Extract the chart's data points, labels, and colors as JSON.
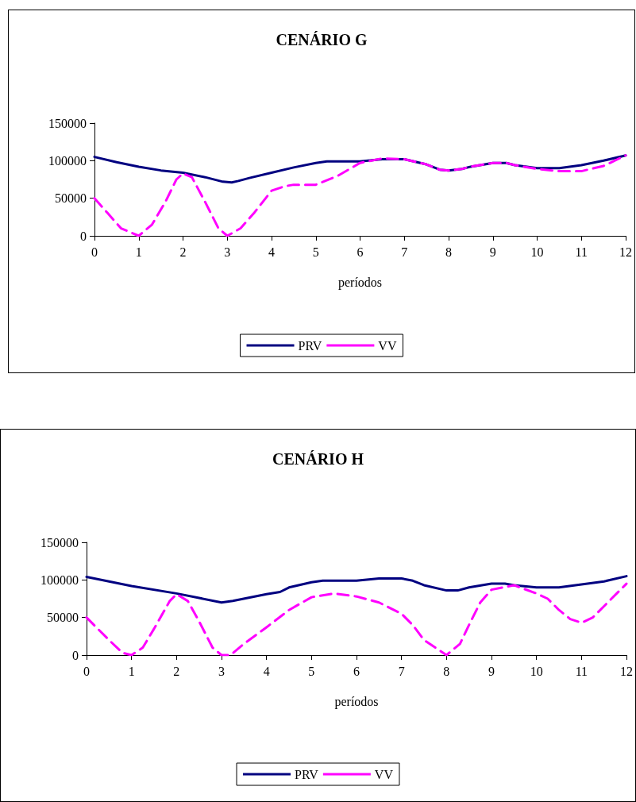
{
  "chart_data": [
    {
      "type": "line",
      "title": "CENÁRIO G",
      "xlabel": "períodos",
      "xlim": [
        0,
        12
      ],
      "xticks": [
        0,
        1,
        2,
        3,
        4,
        5,
        6,
        7,
        8,
        9,
        10,
        11,
        12
      ],
      "ylim": [
        0,
        150000
      ],
      "yticks": [
        0,
        50000,
        100000,
        150000
      ],
      "grid": false,
      "legend": "bottom",
      "marker": "none",
      "series": [
        {
          "name": "PRV",
          "color": "#000080",
          "line_style": "solid",
          "x": [
            0,
            0.5,
            1,
            1.5,
            2,
            2.5,
            2.9,
            3.1,
            3.25,
            3.5,
            4,
            4.5,
            5,
            5.25,
            6,
            6.5,
            7,
            7.5,
            7.8,
            8,
            8.3,
            8.5,
            9,
            9.3,
            9.5,
            10,
            10.5,
            11,
            11.5,
            12
          ],
          "values": [
            105000,
            98000,
            92000,
            87000,
            84000,
            78000,
            72000,
            71000,
            73000,
            77000,
            84000,
            91000,
            97000,
            99000,
            99000,
            102000,
            102000,
            95000,
            88000,
            87000,
            89000,
            92000,
            97000,
            97000,
            94000,
            90000,
            90000,
            94000,
            100000,
            107000
          ]
        },
        {
          "name": "VV",
          "color": "#ff00ff",
          "line_style": "dashed",
          "x": [
            0,
            0.3,
            0.6,
            1,
            1.3,
            1.6,
            1.85,
            2,
            2.2,
            2.5,
            2.8,
            3,
            3.3,
            3.6,
            4,
            4.3,
            4.5,
            5,
            5.5,
            6,
            6.5,
            7,
            7.5,
            7.8,
            8,
            8.3,
            8.5,
            9,
            9.3,
            9.5,
            10,
            10.5,
            11,
            11.5,
            12
          ],
          "values": [
            50000,
            30000,
            10000,
            0,
            15000,
            45000,
            75000,
            83000,
            78000,
            45000,
            10000,
            0,
            10000,
            30000,
            60000,
            66000,
            68000,
            68000,
            80000,
            97000,
            103000,
            102000,
            95000,
            88000,
            87000,
            89000,
            92000,
            97000,
            97000,
            94000,
            89000,
            86000,
            86000,
            93000,
            107000
          ]
        }
      ]
    },
    {
      "type": "line",
      "title": "CENÁRIO H",
      "xlabel": "períodos",
      "xlim": [
        0,
        12
      ],
      "xticks": [
        0,
        1,
        2,
        3,
        4,
        5,
        6,
        7,
        8,
        9,
        10,
        11,
        12
      ],
      "ylim": [
        0,
        150000
      ],
      "yticks": [
        0,
        50000,
        100000,
        150000
      ],
      "grid": false,
      "legend": "bottom",
      "marker": "none",
      "series": [
        {
          "name": "PRV",
          "color": "#000080",
          "line_style": "solid",
          "x": [
            0,
            1,
            2,
            2.5,
            3,
            3.25,
            4,
            4.3,
            4.5,
            5,
            5.25,
            6,
            6.5,
            7,
            7.25,
            7.5,
            8,
            8.25,
            8.5,
            9,
            9.3,
            9.5,
            10,
            10.5,
            11,
            11.5,
            12
          ],
          "values": [
            104000,
            92000,
            82000,
            76000,
            70000,
            72000,
            81000,
            84000,
            90000,
            97000,
            99000,
            99000,
            102000,
            102000,
            99000,
            93000,
            86000,
            86000,
            90000,
            95000,
            95000,
            93000,
            90000,
            90000,
            94000,
            98000,
            105000
          ]
        },
        {
          "name": "VV",
          "color": "#ff00ff",
          "line_style": "dashed",
          "x": [
            0,
            0.5,
            0.8,
            1,
            1.25,
            1.5,
            1.85,
            2,
            2.25,
            2.5,
            2.8,
            3,
            3.2,
            3.5,
            4,
            4.5,
            5,
            5.5,
            6,
            6.5,
            7,
            7.25,
            7.5,
            8,
            8.3,
            8.5,
            8.75,
            9,
            9.5,
            10,
            10.25,
            10.5,
            10.75,
            11,
            11.25,
            11.5,
            12
          ],
          "values": [
            50000,
            20000,
            3000,
            0,
            10000,
            35000,
            72000,
            81000,
            72000,
            45000,
            10000,
            0,
            0,
            15000,
            37000,
            60000,
            77000,
            82000,
            78000,
            70000,
            55000,
            40000,
            20000,
            0,
            15000,
            40000,
            70000,
            87000,
            93000,
            82000,
            75000,
            60000,
            48000,
            43000,
            50000,
            65000,
            95000
          ]
        }
      ]
    }
  ]
}
